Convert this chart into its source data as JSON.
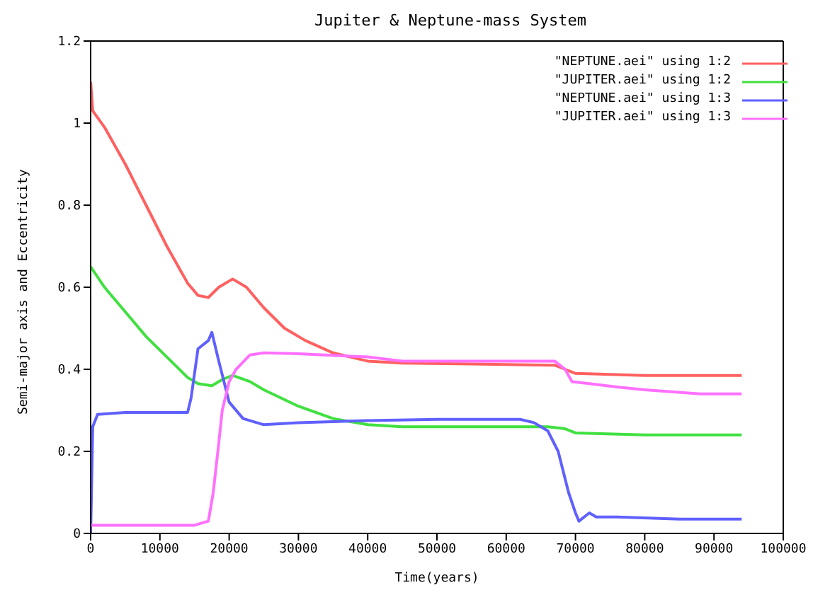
{
  "chart_data": {
    "type": "line",
    "title": "Jupiter & Neptune-mass System",
    "xlabel": "Time(years)",
    "ylabel": "Semi-major axis and Eccentricity",
    "xlim": [
      0,
      100000
    ],
    "xticks": [
      0,
      10000,
      20000,
      30000,
      40000,
      50000,
      60000,
      70000,
      80000,
      90000,
      100000
    ],
    "ylim": [
      0,
      1.2
    ],
    "yticks": [
      0,
      0.2,
      0.4,
      0.6,
      0.8,
      1,
      1.2
    ],
    "legend": "top right",
    "marker": "none",
    "line_style": "solid",
    "series": [
      {
        "name": "\"NEPTUNE.aei\" using 1:2",
        "color": "#ff6060",
        "x": [
          0,
          300,
          2000,
          5000,
          8000,
          11000,
          14000,
          15500,
          17000,
          18500,
          20500,
          22500,
          25000,
          28000,
          31000,
          35000,
          40000,
          45000,
          55000,
          67000,
          68500,
          70000,
          80000,
          94000
        ],
        "values": [
          1.1,
          1.03,
          0.99,
          0.9,
          0.8,
          0.7,
          0.61,
          0.58,
          0.575,
          0.6,
          0.62,
          0.6,
          0.55,
          0.5,
          0.47,
          0.44,
          0.42,
          0.415,
          0.413,
          0.41,
          0.4,
          0.39,
          0.385,
          0.385
        ]
      },
      {
        "name": "\"JUPITER.aei\" using 1:2",
        "color": "#40e040",
        "x": [
          0,
          2000,
          5000,
          8000,
          11000,
          14000,
          15500,
          17500,
          19000,
          20500,
          23000,
          25000,
          30000,
          35000,
          40000,
          45000,
          55000,
          66000,
          68500,
          70000,
          80000,
          94000
        ],
        "values": [
          0.65,
          0.6,
          0.54,
          0.48,
          0.43,
          0.38,
          0.365,
          0.36,
          0.375,
          0.385,
          0.37,
          0.35,
          0.31,
          0.28,
          0.265,
          0.26,
          0.26,
          0.26,
          0.255,
          0.245,
          0.24,
          0.24
        ]
      },
      {
        "name": "\"NEPTUNE.aei\" using 1:3",
        "color": "#6060ff",
        "x": [
          0,
          300,
          1000,
          5000,
          10000,
          14000,
          14500,
          15500,
          17000,
          17500,
          18500,
          20000,
          22000,
          25000,
          30000,
          40000,
          50000,
          62000,
          64000,
          66000,
          67500,
          69000,
          70000,
          70500,
          72000,
          73000,
          76000,
          85000,
          94000
        ],
        "values": [
          0,
          0.26,
          0.29,
          0.295,
          0.295,
          0.295,
          0.33,
          0.45,
          0.47,
          0.49,
          0.42,
          0.32,
          0.28,
          0.265,
          0.27,
          0.275,
          0.278,
          0.278,
          0.27,
          0.25,
          0.2,
          0.1,
          0.05,
          0.03,
          0.05,
          0.04,
          0.04,
          0.035,
          0.035
        ]
      },
      {
        "name": "\"JUPITER.aei\" using 1:3",
        "color": "#ff70ff",
        "x": [
          0,
          10000,
          15000,
          17000,
          17700,
          18500,
          19000,
          20000,
          21000,
          23000,
          25000,
          30000,
          40000,
          45000,
          55000,
          67000,
          68500,
          69500,
          72000,
          76000,
          80000,
          88000,
          94000
        ],
        "values": [
          0.02,
          0.02,
          0.02,
          0.03,
          0.1,
          0.22,
          0.3,
          0.37,
          0.4,
          0.435,
          0.44,
          0.438,
          0.43,
          0.42,
          0.42,
          0.42,
          0.4,
          0.37,
          0.365,
          0.357,
          0.35,
          0.34,
          0.34
        ]
      }
    ]
  }
}
